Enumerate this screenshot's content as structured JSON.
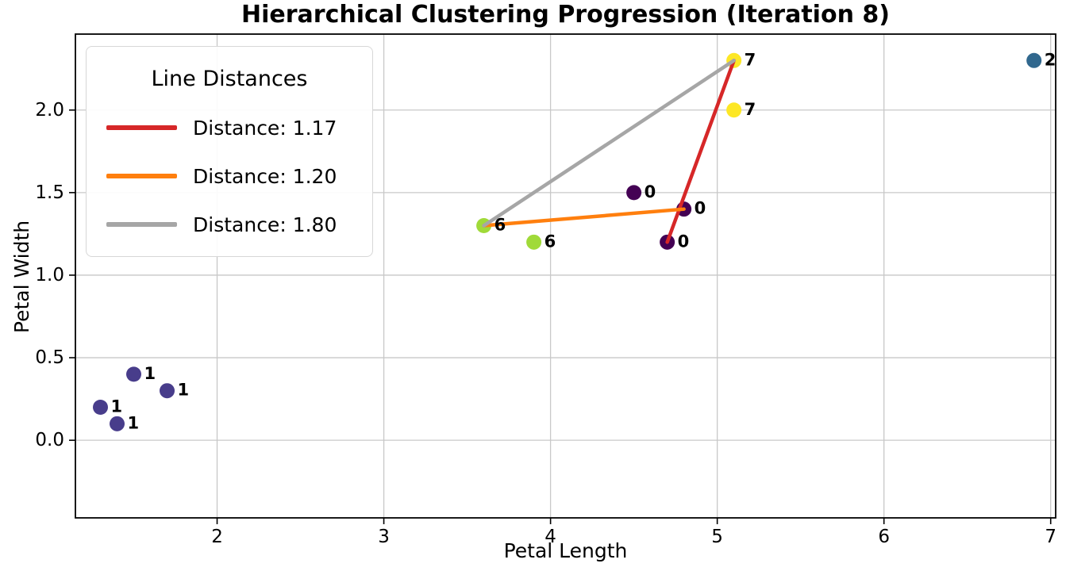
{
  "chart_data": {
    "type": "scatter",
    "title": "Hierarchical Clustering Progression (Iteration 8)",
    "xlabel": "Petal Length",
    "ylabel": "Petal Width",
    "xlim": [
      1.15,
      7.03
    ],
    "ylim": [
      -0.47,
      2.46
    ],
    "x_ticks": [
      {
        "v": 2,
        "label": "2"
      },
      {
        "v": 3,
        "label": "3"
      },
      {
        "v": 4,
        "label": "4"
      },
      {
        "v": 5,
        "label": "5"
      },
      {
        "v": 6,
        "label": "6"
      },
      {
        "v": 7,
        "label": "7"
      }
    ],
    "y_ticks": [
      {
        "v": 0.0,
        "label": "0.0"
      },
      {
        "v": 0.5,
        "label": "0.5"
      },
      {
        "v": 1.0,
        "label": "1.0"
      },
      {
        "v": 1.5,
        "label": "1.5"
      },
      {
        "v": 2.0,
        "label": "2.0"
      }
    ],
    "grid": true,
    "colors": {
      "grid": "#c8c8c8",
      "spine": "#000000",
      "tick_text": "#000000",
      "background": "#ffffff"
    },
    "clusters": [
      {
        "id": "0",
        "color": "#440154",
        "points": [
          {
            "x": 4.5,
            "y": 1.5
          },
          {
            "x": 4.8,
            "y": 1.4
          },
          {
            "x": 4.7,
            "y": 1.2
          }
        ]
      },
      {
        "id": "1",
        "color": "#483d8b",
        "points": [
          {
            "x": 1.5,
            "y": 0.4
          },
          {
            "x": 1.7,
            "y": 0.3
          },
          {
            "x": 1.3,
            "y": 0.2
          },
          {
            "x": 1.4,
            "y": 0.1
          }
        ]
      },
      {
        "id": "2",
        "color": "#31688e",
        "points": [
          {
            "x": 6.9,
            "y": 2.3
          }
        ]
      },
      {
        "id": "6",
        "color": "#a0da39",
        "points": [
          {
            "x": 3.6,
            "y": 1.3
          },
          {
            "x": 3.9,
            "y": 1.2
          }
        ]
      },
      {
        "id": "7",
        "color": "#fde725",
        "points": [
          {
            "x": 5.1,
            "y": 2.3
          },
          {
            "x": 5.1,
            "y": 2.0
          }
        ]
      }
    ],
    "lines": [
      {
        "from": {
          "x": 5.1,
          "y": 2.3
        },
        "to": {
          "x": 4.7,
          "y": 1.2
        },
        "color": "#d62728",
        "distance": "1.17",
        "legend_label": "Distance: 1.17"
      },
      {
        "from": {
          "x": 3.6,
          "y": 1.3
        },
        "to": {
          "x": 4.8,
          "y": 1.4
        },
        "color": "#ff7f0e",
        "distance": "1.20",
        "legend_label": "Distance: 1.20"
      },
      {
        "from": {
          "x": 3.6,
          "y": 1.3
        },
        "to": {
          "x": 5.1,
          "y": 2.3
        },
        "color": "#a6a6a6",
        "distance": "1.80",
        "legend_label": "Distance: 1.80"
      }
    ],
    "legend": {
      "title": "Line Distances",
      "position": "upper-left"
    }
  }
}
